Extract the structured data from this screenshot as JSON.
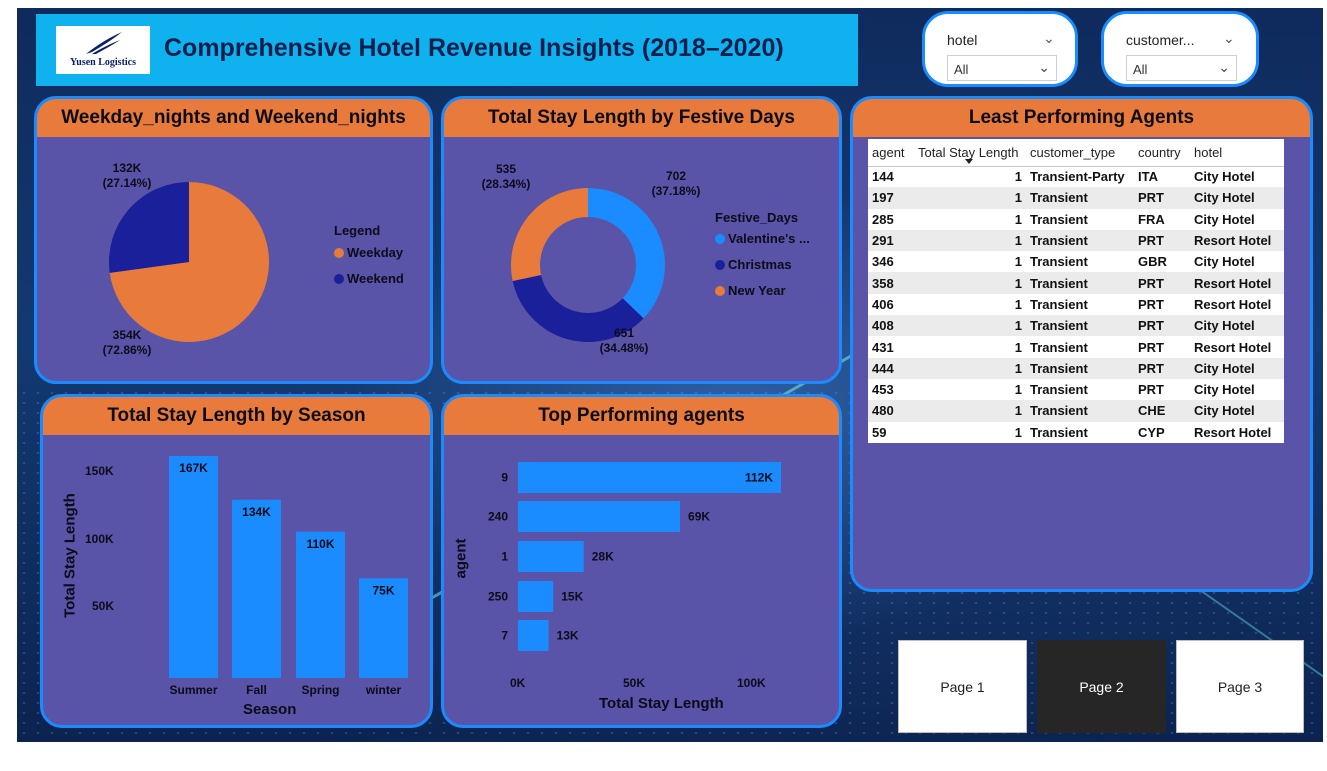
{
  "header": {
    "logo_text": "Yusen Logistics",
    "title": "Comprehensive Hotel Revenue Insights (2018–2020)"
  },
  "slicers": {
    "hotel": {
      "label": "hotel",
      "value": "All"
    },
    "customer": {
      "label": "customer...",
      "value": "All"
    }
  },
  "pie_card": {
    "title": "Weekday_nights and Weekend_nights",
    "legend_title": "Legend",
    "legend": [
      "Weekday",
      "Weekend"
    ],
    "labels": [
      {
        "value": "354K",
        "pct": "(72.86%)"
      },
      {
        "value": "132K",
        "pct": "(27.14%)"
      }
    ]
  },
  "donut_card": {
    "title": "Total Stay Length by Festive Days",
    "legend_title": "Festive_Days",
    "legend": [
      "Valentine's ...",
      "Christmas",
      "New Year"
    ],
    "labels": [
      {
        "value": "702",
        "pct": "(37.18%)"
      },
      {
        "value": "651",
        "pct": "(34.48%)"
      },
      {
        "value": "535",
        "pct": "(28.34%)"
      }
    ]
  },
  "season_card": {
    "title": "Total Stay Length by Season",
    "xlabel": "Season",
    "ylabel": "Total Stay Length",
    "ticks": [
      "150K",
      "100K",
      "50K"
    ],
    "bars": [
      {
        "label": "Summer",
        "value_label": "167K"
      },
      {
        "label": "Fall",
        "value_label": "134K"
      },
      {
        "label": "Spring",
        "value_label": "110K"
      },
      {
        "label": "winter",
        "value_label": "75K"
      }
    ]
  },
  "agents_card": {
    "title": "Top Performing agents",
    "xlabel": "Total Stay Length",
    "ylabel": "agent",
    "ticks": [
      "0K",
      "50K",
      "100K"
    ],
    "bars": [
      {
        "label": "9",
        "value_label": "112K"
      },
      {
        "label": "240",
        "value_label": "69K"
      },
      {
        "label": "1",
        "value_label": "28K"
      },
      {
        "label": "250",
        "value_label": "15K"
      },
      {
        "label": "7",
        "value_label": "13K"
      }
    ]
  },
  "least_card": {
    "title": "Least Performing Agents",
    "columns": [
      "agent",
      "Total Stay Length",
      "customer_type",
      "country",
      "hotel"
    ],
    "rows": [
      [
        "144",
        "1",
        "Transient-Party",
        "ITA",
        "City Hotel"
      ],
      [
        "197",
        "1",
        "Transient",
        "PRT",
        "City Hotel"
      ],
      [
        "285",
        "1",
        "Transient",
        "FRA",
        "City Hotel"
      ],
      [
        "291",
        "1",
        "Transient",
        "PRT",
        "Resort Hotel"
      ],
      [
        "346",
        "1",
        "Transient",
        "GBR",
        "City Hotel"
      ],
      [
        "358",
        "1",
        "Transient",
        "PRT",
        "Resort Hotel"
      ],
      [
        "406",
        "1",
        "Transient",
        "PRT",
        "Resort Hotel"
      ],
      [
        "408",
        "1",
        "Transient",
        "PRT",
        "City Hotel"
      ],
      [
        "431",
        "1",
        "Transient",
        "PRT",
        "Resort Hotel"
      ],
      [
        "444",
        "1",
        "Transient",
        "PRT",
        "City Hotel"
      ],
      [
        "453",
        "1",
        "Transient",
        "PRT",
        "City Hotel"
      ],
      [
        "480",
        "1",
        "Transient",
        "CHE",
        "City Hotel"
      ],
      [
        "59",
        "1",
        "Transient",
        "CYP",
        "Resort Hotel"
      ]
    ]
  },
  "pages": [
    "Page 1",
    "Page 2",
    "Page 3"
  ],
  "colors": {
    "orange": "#e87a3c",
    "navy": "#1a1f9a",
    "blue": "#1a8cff",
    "card": "#5a54a8",
    "title_bar": "#0fb2ef"
  },
  "chart_data": [
    {
      "type": "pie",
      "title": "Weekday_nights and Weekend_nights",
      "legend_title": "Legend",
      "categories": [
        "Weekday",
        "Weekend"
      ],
      "values": [
        354000,
        132000
      ],
      "percentages": [
        72.86,
        27.14
      ]
    },
    {
      "type": "pie",
      "title": "Total Stay Length by Festive Days",
      "legend_title": "Festive_Days",
      "categories": [
        "Valentine's ...",
        "Christmas",
        "New Year"
      ],
      "values": [
        702,
        651,
        535
      ],
      "percentages": [
        37.18,
        34.48,
        28.34
      ]
    },
    {
      "type": "bar",
      "title": "Total Stay Length by Season",
      "categories": [
        "Summer",
        "Fall",
        "Spring",
        "winter"
      ],
      "values": [
        167000,
        134000,
        110000,
        75000
      ],
      "xlabel": "Season",
      "ylabel": "Total Stay Length",
      "ylim": [
        0,
        167000
      ]
    },
    {
      "type": "bar",
      "orientation": "horizontal",
      "title": "Top Performing agents",
      "categories": [
        "9",
        "240",
        "1",
        "250",
        "7"
      ],
      "values": [
        112000,
        69000,
        28000,
        15000,
        13000
      ],
      "xlabel": "Total Stay Length",
      "ylabel": "agent",
      "xlim": [
        0,
        112000
      ]
    }
  ]
}
